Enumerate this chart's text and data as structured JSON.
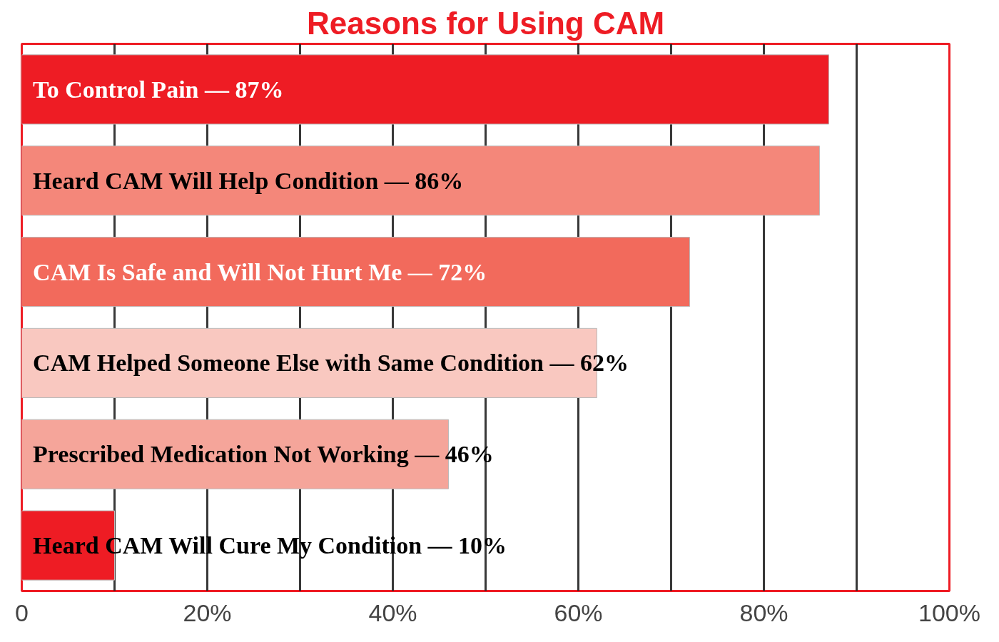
{
  "chart_data": {
    "type": "bar",
    "orientation": "horizontal",
    "title": "Reasons for Using CAM",
    "categories": [
      "To Control Pain",
      "Heard CAM Will Help Condition",
      "CAM Is Safe and Will Not Hurt Me",
      "CAM Helped Someone Else with Same Condition",
      "Prescribed Medication Not Working",
      "Heard CAM Will Cure My Condition"
    ],
    "values": [
      87,
      86,
      72,
      62,
      46,
      10
    ],
    "value_labels": [
      "— 87%",
      "— 86%",
      "— 72%",
      "— 62%",
      "— 46%",
      "— 10%"
    ],
    "colors": [
      "#ee1c24",
      "#f4877a",
      "#f26a5c",
      "#f9c8c0",
      "#f5a59a",
      "#ee1c24"
    ],
    "xlim": [
      0,
      100
    ],
    "xticks": [
      0,
      {
        "value": 10,
        "label": null
      },
      {
        "value": 20,
        "label": "20%"
      },
      {
        "value": 30,
        "label": null
      },
      {
        "value": 40,
        "label": "40%"
      },
      {
        "value": 50,
        "label": null
      },
      {
        "value": 60,
        "label": "60%"
      },
      {
        "value": 70,
        "label": null
      },
      {
        "value": 80,
        "label": "80%"
      },
      {
        "value": 90,
        "label": null
      },
      {
        "value": 100,
        "label": "100%"
      }
    ],
    "grid": "x",
    "tick_labels": "x"
  }
}
